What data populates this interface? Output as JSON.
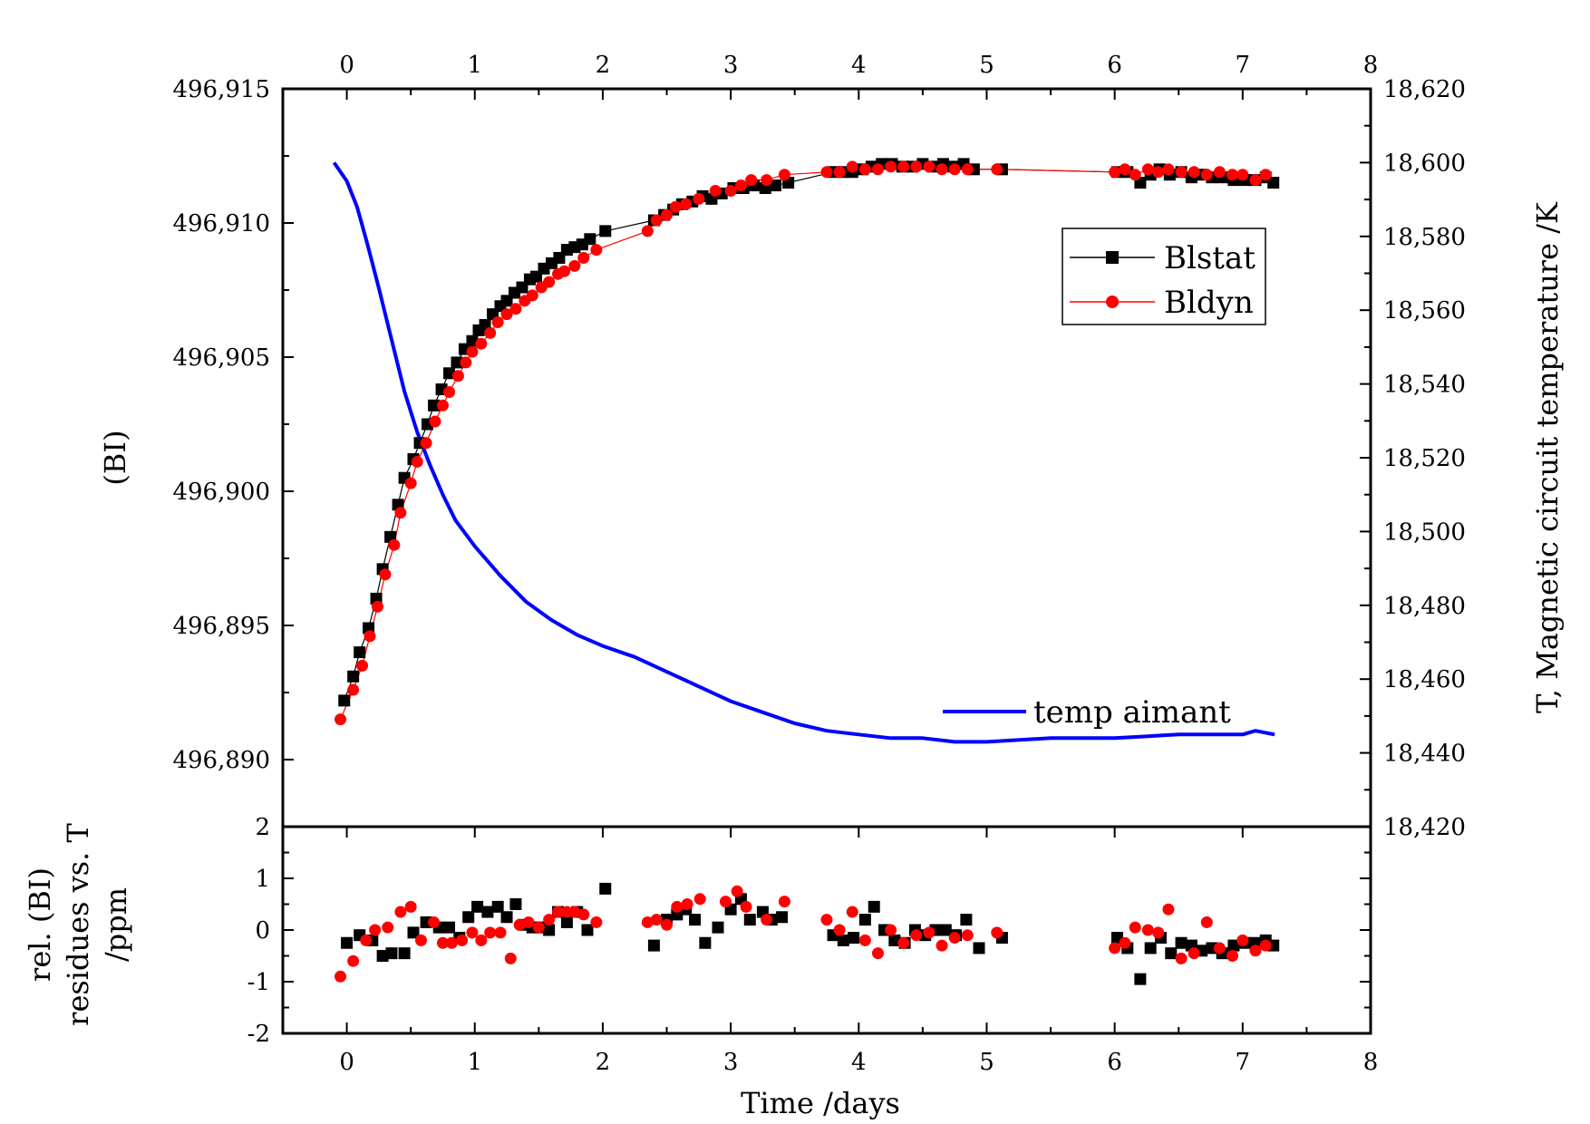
{
  "chart_data": [
    {
      "panel": "main",
      "type": "scatter",
      "xlim": [
        -0.5,
        8
      ],
      "top_x_ticks": [
        "0",
        "1",
        "2",
        "3",
        "4",
        "5",
        "6",
        "7",
        "8"
      ],
      "ylabel_left": "(BI)",
      "ylim_left": [
        496.8875,
        496.915
      ],
      "yticks_left": [
        "496,890",
        "496,895",
        "496,900",
        "496,905",
        "496,910",
        "496,915"
      ],
      "ylabel_right": "T, Magnetic circuit temperature /K",
      "ylim_right": [
        18.42,
        18.62
      ],
      "yticks_right": [
        "18,420",
        "18,440",
        "18,460",
        "18,480",
        "18,500",
        "18,520",
        "18,540",
        "18,560",
        "18,580",
        "18,600",
        "18,620"
      ],
      "legend_position": "top-right",
      "series": [
        {
          "name": "Blstat",
          "axis": "left",
          "color": "#000000",
          "marker": "square",
          "x": [
            -0.02,
            0.05,
            0.1,
            0.17,
            0.23,
            0.28,
            0.34,
            0.4,
            0.45,
            0.52,
            0.57,
            0.63,
            0.68,
            0.74,
            0.8,
            0.86,
            0.92,
            0.98,
            1.03,
            1.08,
            1.14,
            1.2,
            1.25,
            1.31,
            1.37,
            1.43,
            1.48,
            1.54,
            1.6,
            1.66,
            1.72,
            1.78,
            1.84,
            1.9,
            2.02,
            2.4,
            2.48,
            2.55,
            2.62,
            2.7,
            2.78,
            2.85,
            2.93,
            3.02,
            3.1,
            3.18,
            3.27,
            3.35,
            3.45,
            3.8,
            3.88,
            3.95,
            4.03,
            4.1,
            4.18,
            4.26,
            4.34,
            4.42,
            4.5,
            4.58,
            4.66,
            4.74,
            4.82,
            4.9,
            5.12,
            6.02,
            6.1,
            6.2,
            6.28,
            6.35,
            6.43,
            6.52,
            6.6,
            6.68,
            6.76,
            6.84,
            6.93,
            7.02,
            7.1,
            7.18,
            7.24
          ],
          "values": [
            496.8922,
            496.8931,
            496.894,
            496.8949,
            496.896,
            496.8971,
            496.8983,
            496.8995,
            496.9005,
            496.9012,
            496.9018,
            496.9025,
            496.9032,
            496.9038,
            496.9044,
            496.9048,
            496.9053,
            496.9056,
            496.906,
            496.9062,
            496.9066,
            496.9069,
            496.9071,
            496.9074,
            496.9076,
            496.9079,
            496.908,
            496.9083,
            496.9085,
            496.9087,
            496.909,
            496.9091,
            496.9092,
            496.9094,
            496.9097,
            496.9101,
            496.9103,
            496.9105,
            496.9107,
            496.9108,
            496.911,
            496.9109,
            496.9111,
            496.9113,
            496.9113,
            496.9114,
            496.9113,
            496.9114,
            496.9115,
            496.9119,
            496.9119,
            496.9119,
            496.912,
            496.9121,
            496.9122,
            496.9122,
            496.9121,
            496.9121,
            496.9122,
            496.9121,
            496.9122,
            496.9121,
            496.9122,
            496.912,
            496.912,
            496.9119,
            496.9119,
            496.9115,
            496.9118,
            496.912,
            496.9118,
            496.9119,
            496.9117,
            496.9118,
            496.9117,
            496.9117,
            496.9116,
            496.9116,
            496.9116,
            496.9117,
            496.9115
          ]
        },
        {
          "name": "Bldyn",
          "axis": "left",
          "color": "#ff0000",
          "marker": "circle",
          "x": [
            -0.05,
            0.05,
            0.12,
            0.18,
            0.24,
            0.3,
            0.37,
            0.42,
            0.5,
            0.55,
            0.62,
            0.69,
            0.75,
            0.8,
            0.87,
            0.93,
            0.98,
            1.05,
            1.12,
            1.18,
            1.25,
            1.32,
            1.39,
            1.45,
            1.52,
            1.58,
            1.65,
            1.7,
            1.78,
            1.85,
            1.95,
            2.35,
            2.42,
            2.5,
            2.57,
            2.65,
            2.75,
            2.88,
            3.0,
            3.08,
            3.16,
            3.28,
            3.42,
            3.75,
            3.85,
            3.95,
            4.05,
            4.15,
            4.25,
            4.35,
            4.45,
            4.55,
            4.65,
            4.75,
            4.85,
            5.08,
            6.0,
            6.08,
            6.16,
            6.26,
            6.34,
            6.42,
            6.52,
            6.62,
            6.72,
            6.82,
            6.92,
            7.0,
            7.1,
            7.18
          ],
          "values": [
            496.8915,
            496.8926,
            496.8935,
            496.8946,
            496.8957,
            496.8969,
            496.898,
            496.8992,
            496.9003,
            496.9011,
            496.9018,
            496.9026,
            496.9032,
            496.9037,
            496.9043,
            496.9048,
            496.9052,
            496.9055,
            496.9059,
            496.9063,
            496.9066,
            496.9068,
            496.9071,
            496.9073,
            496.9076,
            496.9078,
            496.9081,
            496.9082,
            496.9084,
            496.9087,
            496.909,
            496.9097,
            496.9101,
            496.9103,
            496.9106,
            496.9107,
            496.9109,
            496.9112,
            496.9112,
            496.9114,
            496.9116,
            496.9116,
            496.9118,
            496.9119,
            496.9119,
            496.9121,
            496.912,
            496.912,
            496.9121,
            496.9121,
            496.9121,
            496.9121,
            496.912,
            496.912,
            496.912,
            496.912,
            496.9119,
            496.912,
            496.9118,
            496.912,
            496.9119,
            496.912,
            496.9119,
            496.9119,
            496.9118,
            496.9119,
            496.9118,
            496.9118,
            496.9116,
            496.9118
          ]
        },
        {
          "name": "temp aimant",
          "axis": "right",
          "color": "#0000ff",
          "marker": "line",
          "x": [
            -0.1,
            0.0,
            0.08,
            0.16,
            0.25,
            0.35,
            0.45,
            0.55,
            0.65,
            0.75,
            0.85,
            1.0,
            1.2,
            1.4,
            1.6,
            1.8,
            2.0,
            2.25,
            2.5,
            2.75,
            3.0,
            3.25,
            3.5,
            3.75,
            4.0,
            4.25,
            4.5,
            4.75,
            5.0,
            5.5,
            6.0,
            6.5,
            7.0,
            7.1,
            7.25
          ],
          "values": [
            18.6,
            18.595,
            18.588,
            18.578,
            18.566,
            18.552,
            18.538,
            18.527,
            18.518,
            18.51,
            18.503,
            18.496,
            18.488,
            18.481,
            18.476,
            18.472,
            18.469,
            18.466,
            18.462,
            18.458,
            18.454,
            18.451,
            18.448,
            18.446,
            18.445,
            18.444,
            18.444,
            18.443,
            18.443,
            18.444,
            18.444,
            18.445,
            18.445,
            18.446,
            18.445
          ]
        }
      ]
    },
    {
      "panel": "residues",
      "type": "scatter",
      "xlabel": "Time /days",
      "xlim": [
        -0.5,
        8
      ],
      "xticks": [
        "0",
        "1",
        "2",
        "3",
        "4",
        "5",
        "6",
        "7",
        "8"
      ],
      "ylabel_line1": "rel. (BI)",
      "ylabel_line2": "residues vs. T",
      "ylabel_line3": "/ppm",
      "ylim": [
        -2,
        2
      ],
      "yticks": [
        "-2",
        "-1",
        "0",
        "1",
        "2"
      ],
      "series": [
        {
          "name": "Blstat",
          "color": "#000000",
          "marker": "square",
          "x": [
            0.0,
            0.1,
            0.2,
            0.28,
            0.35,
            0.45,
            0.52,
            0.62,
            0.72,
            0.8,
            0.88,
            0.95,
            1.02,
            1.1,
            1.18,
            1.25,
            1.32,
            1.38,
            1.45,
            1.52,
            1.58,
            1.65,
            1.72,
            1.8,
            1.88,
            2.02,
            2.4,
            2.5,
            2.58,
            2.65,
            2.72,
            2.8,
            2.9,
            3.0,
            3.08,
            3.15,
            3.25,
            3.32,
            3.4,
            3.8,
            3.88,
            3.96,
            4.05,
            4.12,
            4.2,
            4.28,
            4.36,
            4.44,
            4.52,
            4.6,
            4.68,
            4.76,
            4.84,
            4.94,
            5.12,
            6.02,
            6.1,
            6.2,
            6.28,
            6.36,
            6.44,
            6.52,
            6.6,
            6.68,
            6.76,
            6.84,
            6.93,
            7.02,
            7.1,
            7.18,
            7.24
          ],
          "values": [
            -0.25,
            -0.1,
            -0.2,
            -0.5,
            -0.45,
            -0.45,
            -0.05,
            0.15,
            0.05,
            0.05,
            -0.15,
            0.25,
            0.45,
            0.35,
            0.45,
            0.25,
            0.5,
            0.1,
            0.05,
            0.05,
            0.0,
            0.35,
            0.15,
            0.35,
            0.0,
            0.8,
            -0.3,
            0.2,
            0.3,
            0.4,
            0.2,
            -0.25,
            0.05,
            0.4,
            0.6,
            0.2,
            0.35,
            0.2,
            0.25,
            -0.1,
            -0.2,
            -0.15,
            0.2,
            0.45,
            0.0,
            -0.2,
            -0.25,
            0.0,
            -0.1,
            0.0,
            0.0,
            -0.1,
            0.2,
            -0.35,
            -0.15,
            -0.15,
            -0.35,
            -0.95,
            -0.35,
            -0.15,
            -0.45,
            -0.25,
            -0.3,
            -0.4,
            -0.35,
            -0.45,
            -0.3,
            -0.25,
            -0.25,
            -0.2,
            -0.3
          ]
        },
        {
          "name": "Bldyn",
          "color": "#ff0000",
          "marker": "circle",
          "x": [
            -0.05,
            0.05,
            0.15,
            0.22,
            0.32,
            0.42,
            0.5,
            0.58,
            0.68,
            0.75,
            0.82,
            0.9,
            0.98,
            1.05,
            1.12,
            1.2,
            1.28,
            1.35,
            1.42,
            1.5,
            1.58,
            1.65,
            1.72,
            1.78,
            1.85,
            1.95,
            2.35,
            2.42,
            2.5,
            2.58,
            2.66,
            2.76,
            2.96,
            3.05,
            3.12,
            3.28,
            3.42,
            3.75,
            3.85,
            3.95,
            4.05,
            4.15,
            4.25,
            4.35,
            4.45,
            4.55,
            4.65,
            4.75,
            4.85,
            5.08,
            6.0,
            6.08,
            6.16,
            6.26,
            6.34,
            6.42,
            6.52,
            6.62,
            6.72,
            6.82,
            6.92,
            7.0,
            7.1,
            7.18
          ],
          "values": [
            -0.9,
            -0.6,
            -0.2,
            0.0,
            0.05,
            0.35,
            0.45,
            -0.2,
            0.15,
            -0.25,
            -0.25,
            -0.2,
            -0.05,
            -0.2,
            -0.05,
            -0.05,
            -0.55,
            0.1,
            0.15,
            0.05,
            0.2,
            0.35,
            0.35,
            0.35,
            0.3,
            0.15,
            0.15,
            0.2,
            0.1,
            0.45,
            0.5,
            0.6,
            0.55,
            0.75,
            0.45,
            0.2,
            0.55,
            0.2,
            0.0,
            0.35,
            -0.2,
            -0.45,
            0.0,
            -0.25,
            -0.1,
            -0.05,
            -0.3,
            -0.15,
            -0.1,
            -0.05,
            -0.35,
            -0.25,
            0.05,
            0.0,
            -0.05,
            0.4,
            -0.55,
            -0.45,
            0.15,
            -0.35,
            -0.5,
            -0.2,
            -0.4,
            -0.3
          ]
        }
      ]
    }
  ]
}
